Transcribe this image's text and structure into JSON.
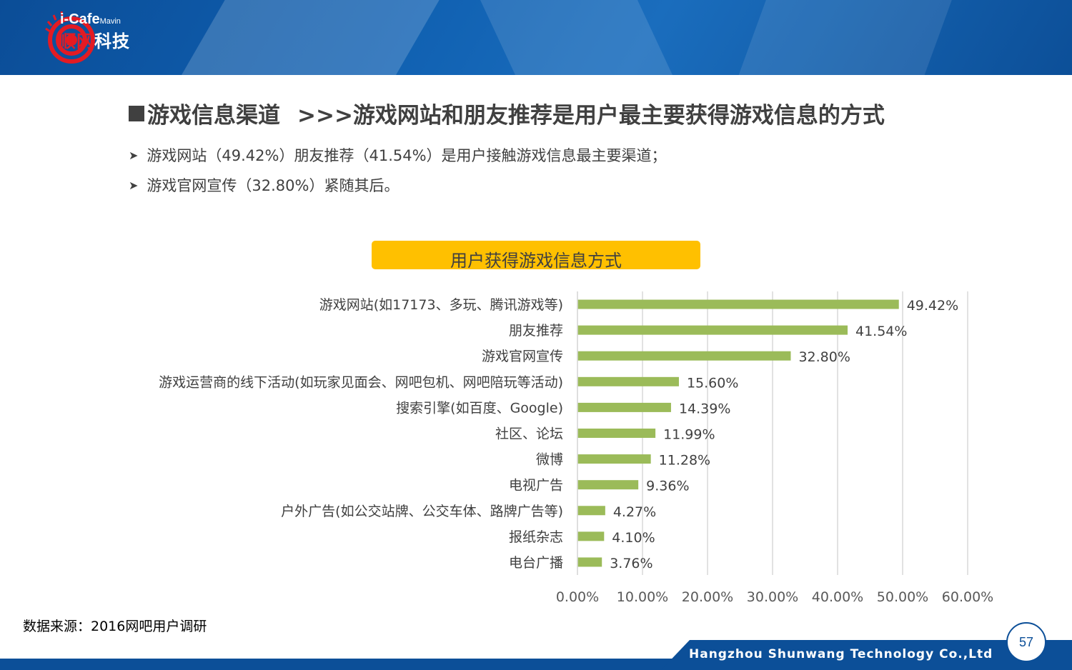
{
  "logo": {
    "brand_top": "i-Cafe",
    "brand_sub": "Mavin",
    "brand_red": "顺网",
    "brand_white": "科技"
  },
  "title": {
    "main": "游戏信息渠道",
    "sub": ">>>游戏网站和朋友推荐是用户最主要获得游戏信息的方式"
  },
  "bullets": [
    "游戏网站（49.42%）朋友推荐（41.54%）是用户接触游戏信息最主要渠道；",
    "游戏官网宣传（32.80%）紧随其后。"
  ],
  "chart_data": {
    "type": "bar",
    "orientation": "horizontal",
    "title": "用户获得游戏信息方式",
    "categories": [
      "游戏网站(如17173、多玩、腾讯游戏等)",
      "朋友推荐",
      "游戏官网宣传",
      "游戏运营商的线下活动(如玩家见面会、网吧包机、网吧陪玩等活动)",
      "搜索引擎(如百度、Google)",
      "社区、论坛",
      "微博",
      "电视广告",
      "户外广告(如公交站牌、公交车体、路牌广告等)",
      "报纸杂志",
      "电台广播"
    ],
    "values": [
      49.42,
      41.54,
      32.8,
      15.6,
      14.39,
      11.99,
      11.28,
      9.36,
      4.27,
      4.1,
      3.76
    ],
    "value_labels": [
      "49.42%",
      "41.54%",
      "32.80%",
      "15.60%",
      "14.39%",
      "11.99%",
      "11.28%",
      "9.36%",
      "4.27%",
      "4.10%",
      "3.76%"
    ],
    "x_ticks": [
      "0.00%",
      "10.00%",
      "20.00%",
      "30.00%",
      "40.00%",
      "50.00%",
      "60.00%"
    ],
    "xlim": [
      0,
      60
    ],
    "grid": true,
    "bar_color": "#9bbb59",
    "title_box_color": "#ffc000"
  },
  "source": "数据来源：2016网吧用户调研",
  "footer": {
    "company": "Hangzhou Shunwang Technology Co.,Ltd",
    "page_number": "57"
  },
  "colors": {
    "header_blue": "#0c4f98",
    "text_gray": "#404040"
  }
}
